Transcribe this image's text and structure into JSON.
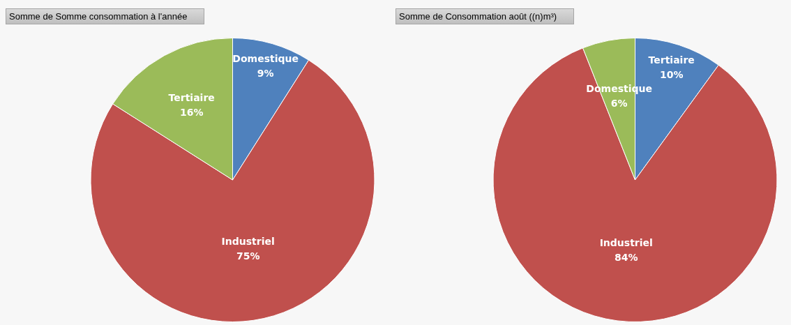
{
  "chart_data": [
    {
      "type": "pie",
      "title": "Somme de Somme consommation à l'année",
      "categories": [
        "Domestique",
        "Industriel",
        "Tertiaire"
      ],
      "values": [
        9,
        75,
        16
      ],
      "value_labels": [
        "9%",
        "75%",
        "16%"
      ],
      "colors": [
        "#4f81bd",
        "#c0504d",
        "#9bbb59"
      ]
    },
    {
      "type": "pie",
      "title": "Somme de Consommation août ((n)m³)",
      "categories": [
        "Tertiaire",
        "Industriel",
        "Domestique"
      ],
      "values": [
        10,
        84,
        6
      ],
      "value_labels": [
        "10%",
        "84%",
        "6%"
      ],
      "colors": [
        "#4f81bd",
        "#c0504d",
        "#9bbb59"
      ]
    }
  ]
}
